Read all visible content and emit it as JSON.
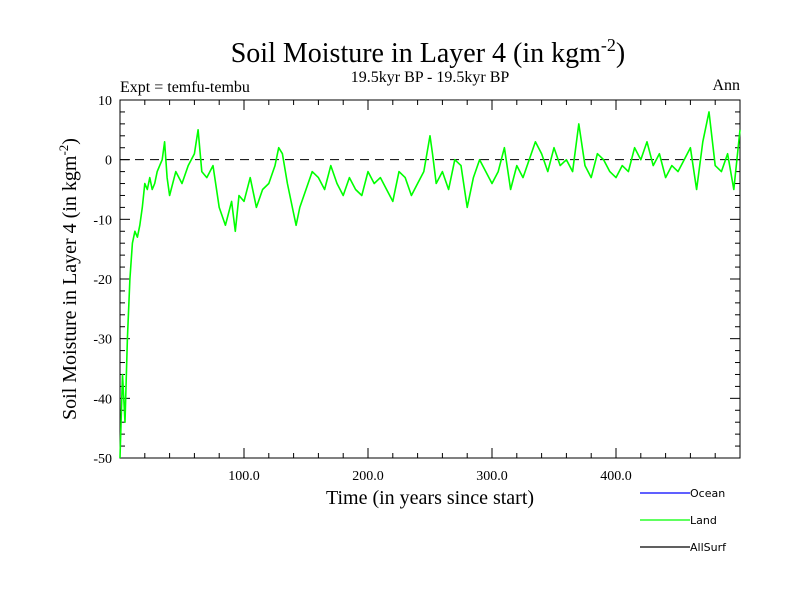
{
  "chart_data": {
    "type": "line",
    "title_main": "Soil Moisture in Layer 4 (in kgm",
    "title_sup": "-2",
    "title_close": ")",
    "subtitle": "19.5kyr BP - 19.5kyr BP",
    "expt_label": "Expt = temfu-tembu",
    "season_label": "Ann",
    "xlabel": "Time (in years since start)",
    "ylabel_main": "Soil Moisture in Layer 4 (in kgm",
    "ylabel_sup": "-2",
    "ylabel_close": ")",
    "xlim": [
      0,
      500
    ],
    "ylim": [
      -50,
      10
    ],
    "xticks": [
      100,
      200,
      300,
      400
    ],
    "xtick_labels": [
      "100.0",
      "200.0",
      "300.0",
      "400.0"
    ],
    "yticks": [
      -50,
      -40,
      -30,
      -20,
      -10,
      0,
      10
    ],
    "ytick_labels": [
      "-50",
      "-40",
      "-30",
      "-20",
      "-10",
      "0",
      "10"
    ],
    "zero_line": 0,
    "colors": {
      "Ocean": "#0000ff",
      "Land": "#00ff00",
      "AllSurf": "#000000"
    },
    "legend": [
      {
        "name": "Ocean",
        "color": "#0000ff"
      },
      {
        "name": "Land",
        "color": "#00ff00"
      },
      {
        "name": "AllSurf",
        "color": "#000000"
      }
    ],
    "series": [
      {
        "name": "Land",
        "color": "#00ff00",
        "x": [
          0,
          2,
          4,
          6,
          8,
          10,
          12,
          14,
          16,
          18,
          20,
          22,
          24,
          26,
          28,
          30,
          32,
          34,
          36,
          38,
          40,
          45,
          50,
          55,
          60,
          63,
          66,
          70,
          75,
          80,
          85,
          90,
          93,
          96,
          100,
          105,
          110,
          115,
          120,
          125,
          128,
          131,
          135,
          140,
          142,
          145,
          150,
          155,
          160,
          165,
          170,
          175,
          180,
          185,
          190,
          195,
          200,
          205,
          210,
          215,
          220,
          225,
          230,
          235,
          240,
          245,
          250,
          252,
          255,
          260,
          265,
          270,
          275,
          280,
          285,
          290,
          295,
          300,
          305,
          310,
          315,
          320,
          325,
          330,
          335,
          340,
          345,
          350,
          355,
          360,
          365,
          370,
          375,
          380,
          385,
          390,
          395,
          400,
          405,
          410,
          415,
          420,
          425,
          430,
          435,
          440,
          445,
          450,
          455,
          460,
          465,
          470,
          475,
          480,
          485,
          490,
          495,
          500
        ],
        "values": [
          -50,
          -36,
          -44,
          -30,
          -20,
          -14,
          -12,
          -13,
          -11,
          -8,
          -4,
          -5,
          -3,
          -5,
          -4,
          -2,
          -1,
          0,
          3,
          -3,
          -6,
          -2,
          -4,
          -1,
          1,
          5,
          -2,
          -3,
          -1,
          -8,
          -11,
          -7,
          -12,
          -6,
          -7,
          -3,
          -8,
          -5,
          -4,
          -1,
          2,
          1,
          -4,
          -9,
          -11,
          -8,
          -5,
          -2,
          -3,
          -5,
          -1,
          -4,
          -6,
          -3,
          -5,
          -6,
          -2,
          -4,
          -3,
          -5,
          -7,
          -2,
          -3,
          -6,
          -4,
          -2,
          4,
          1,
          -4,
          -2,
          -5,
          0,
          -1,
          -8,
          -3,
          0,
          -2,
          -4,
          -2,
          2,
          -5,
          -1,
          -3,
          0,
          3,
          1,
          -2,
          2,
          -1,
          0,
          -2,
          6,
          -1,
          -3,
          1,
          0,
          -2,
          -3,
          -1,
          -2,
          2,
          0,
          3,
          -1,
          1,
          -3,
          -1,
          -2,
          0,
          2,
          -5,
          3,
          8,
          -1,
          -2,
          1,
          -5,
          5
        ]
      },
      {
        "name": "Ocean",
        "color": "#0000ff",
        "x": [],
        "values": []
      },
      {
        "name": "AllSurf",
        "color": "#000000",
        "x": [],
        "values": []
      }
    ]
  }
}
